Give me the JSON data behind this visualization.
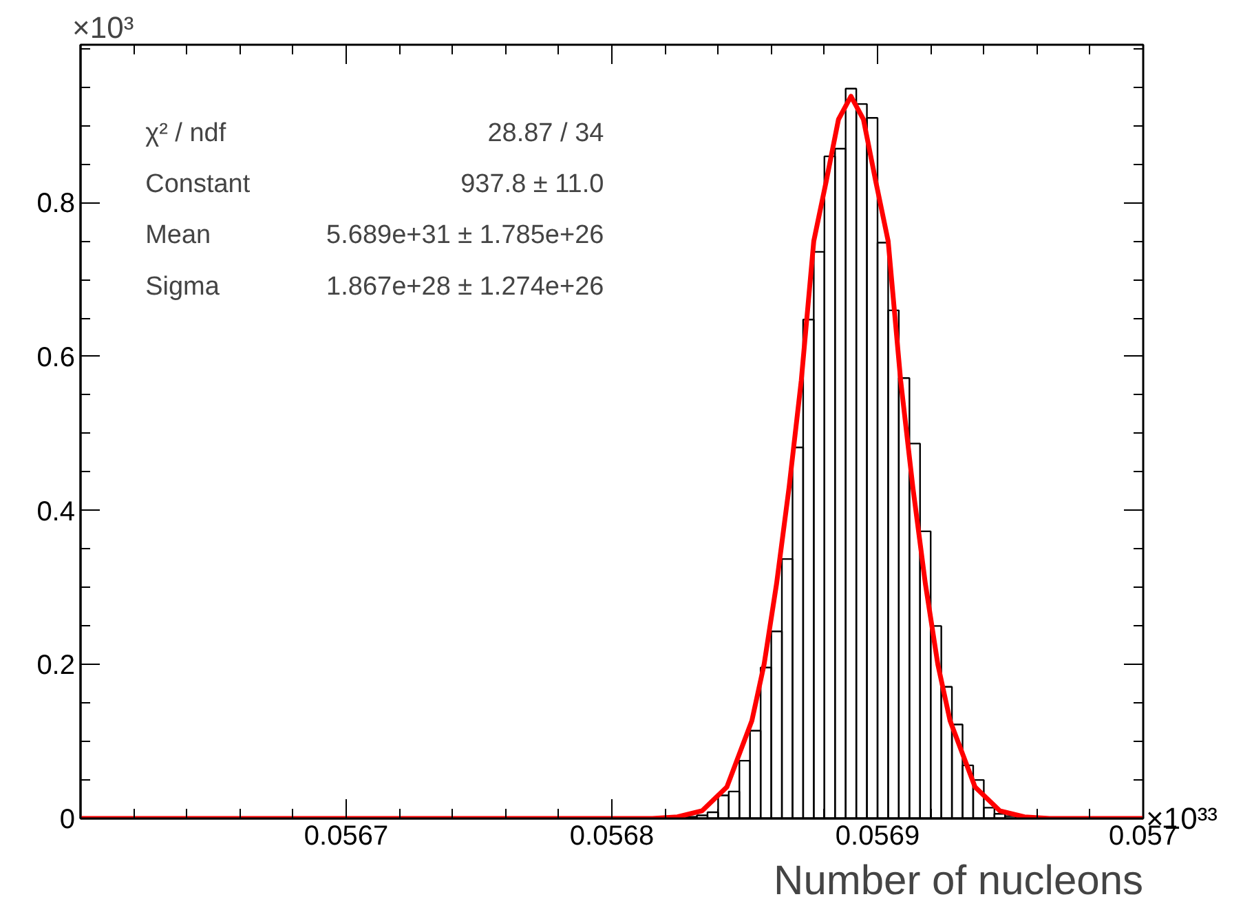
{
  "chart_data": {
    "type": "histogram",
    "xlabel": "Number of nucleons",
    "xlim": [
      0.0566,
      0.057
    ],
    "ylim": [
      0,
      1.005
    ],
    "xticks": [
      0.0567,
      0.0568,
      0.0569,
      {
        "value": 0.057,
        "label": "0.057"
      }
    ],
    "yticks": [
      0,
      0.2,
      0.4,
      0.6,
      0.8
    ],
    "grid": false,
    "annotations": [
      "×10³",
      "×10³³",
      "χ² / ndf",
      "28.87 / 34",
      "Constant",
      "937.8 ± 11.0",
      "Mean",
      "5.689e+31 ± 1.785e+26",
      "Sigma",
      "1.867e+28 ± 1.274e+26"
    ],
    "series": [
      {
        "color": "#000000",
        "bins": [
          0.056828,
          0.056832,
          0.056836,
          0.05684,
          0.056844,
          0.056848,
          0.056852,
          0.056856,
          0.05686,
          0.056864,
          0.056868,
          0.056872,
          0.056876,
          0.05688,
          0.056884,
          0.056888,
          0.056892,
          0.056896,
          0.0569,
          0.056904,
          0.056908,
          0.056912,
          0.056916,
          0.05692,
          0.056924,
          0.056928,
          0.056932,
          0.056936,
          0.05694,
          0.056944,
          0.056948,
          0.056952
        ],
        "values": [
          0.002,
          0.004,
          0.008,
          0.03,
          0.035,
          0.075,
          0.114,
          0.196,
          0.243,
          0.337,
          0.482,
          0.648,
          0.736,
          0.86,
          0.87,
          0.948,
          0.928,
          0.91,
          0.748,
          0.66,
          0.572,
          0.487,
          0.373,
          0.25,
          0.171,
          0.122,
          0.069,
          0.05,
          0.014,
          0.006,
          0.003
        ]
      },
      {
        "type": "line",
        "color": "#ff0000",
        "x": [
          0.0566,
          0.0568,
          0.0568153,
          0.0568247,
          0.056834,
          0.0568433,
          0.0568527,
          0.0568573,
          0.056862,
          0.0568667,
          0.0568713,
          0.056876,
          0.0568807,
          0.0568853,
          0.05689,
          0.0568947,
          0.0568993,
          0.056904,
          0.0569087,
          0.0569133,
          0.056918,
          0.0569227,
          0.0569273,
          0.0569367,
          0.056946,
          0.0569553,
          0.0569647,
          0.057
        ],
        "values": [
          0,
          0,
          0,
          0.002,
          0.01,
          0.041,
          0.127,
          0.2,
          0.305,
          0.43,
          0.569,
          0.75,
          0.828,
          0.908,
          0.938,
          0.908,
          0.828,
          0.75,
          0.569,
          0.43,
          0.305,
          0.2,
          0.127,
          0.041,
          0.01,
          0.002,
          0,
          0
        ]
      }
    ]
  }
}
